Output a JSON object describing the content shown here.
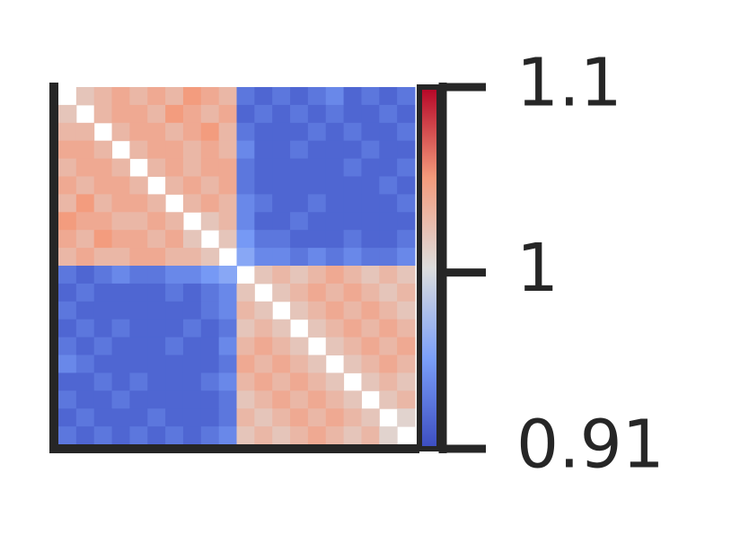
{
  "chart_data": {
    "type": "heatmap",
    "colormap": "coolwarm",
    "clim": [
      0.905,
      1.1
    ],
    "cticks": [
      {
        "value": 0.905,
        "label": "0.91"
      },
      1,
      1.1
    ],
    "matrix": [
      [
        null,
        1.02,
        1.03,
        1.04,
        1.03,
        1.04,
        1.03,
        1.05,
        1.04,
        1.03,
        0.93,
        0.92,
        0.93,
        0.92,
        0.93,
        0.94,
        0.92,
        0.93,
        0.92,
        0.93
      ],
      [
        1.02,
        null,
        1.03,
        1.04,
        1.04,
        1.03,
        1.05,
        1.04,
        1.03,
        1.04,
        0.92,
        0.93,
        0.92,
        0.93,
        0.92,
        0.93,
        0.92,
        0.92,
        0.93,
        0.92
      ],
      [
        1.03,
        1.03,
        null,
        1.03,
        1.04,
        1.04,
        1.03,
        1.04,
        1.05,
        1.03,
        0.93,
        0.92,
        0.92,
        0.92,
        0.93,
        0.92,
        0.93,
        0.92,
        0.92,
        0.93
      ],
      [
        1.04,
        1.04,
        1.03,
        null,
        1.03,
        1.04,
        1.04,
        1.03,
        1.04,
        1.03,
        0.94,
        0.92,
        0.92,
        0.93,
        0.92,
        0.92,
        0.92,
        0.93,
        0.92,
        0.92
      ],
      [
        1.03,
        1.04,
        1.04,
        1.03,
        null,
        1.03,
        1.04,
        1.03,
        1.04,
        1.04,
        0.93,
        0.92,
        0.92,
        0.92,
        0.92,
        0.92,
        0.93,
        0.92,
        0.92,
        0.93
      ],
      [
        1.04,
        1.03,
        1.04,
        1.04,
        1.03,
        null,
        1.03,
        1.04,
        1.03,
        1.04,
        0.93,
        0.92,
        0.92,
        0.92,
        0.92,
        0.92,
        0.92,
        0.92,
        0.93,
        0.92
      ],
      [
        1.03,
        1.05,
        1.03,
        1.04,
        1.04,
        1.03,
        null,
        1.03,
        1.04,
        1.03,
        0.94,
        0.93,
        0.92,
        0.92,
        0.93,
        0.92,
        0.92,
        0.92,
        0.92,
        0.93
      ],
      [
        1.05,
        1.04,
        1.04,
        1.03,
        1.03,
        1.04,
        1.03,
        null,
        1.02,
        1.03,
        0.94,
        0.92,
        0.92,
        0.93,
        0.92,
        0.92,
        0.92,
        0.92,
        0.92,
        0.92
      ],
      [
        1.04,
        1.03,
        1.05,
        1.04,
        1.04,
        1.03,
        1.04,
        1.02,
        null,
        1.02,
        0.95,
        0.93,
        0.93,
        0.92,
        0.92,
        0.92,
        0.93,
        0.92,
        0.92,
        0.93
      ],
      [
        1.03,
        1.04,
        1.03,
        1.03,
        1.04,
        1.04,
        1.03,
        1.03,
        1.02,
        null,
        0.96,
        0.94,
        0.94,
        0.93,
        0.94,
        0.93,
        0.94,
        0.93,
        0.93,
        0.94
      ],
      [
        0.93,
        0.92,
        0.93,
        0.94,
        0.93,
        0.93,
        0.94,
        0.94,
        0.95,
        0.96,
        null,
        1.02,
        1.03,
        1.02,
        1.03,
        1.04,
        1.03,
        1.02,
        1.03,
        1.02
      ],
      [
        0.92,
        0.93,
        0.92,
        0.92,
        0.92,
        0.92,
        0.93,
        0.92,
        0.93,
        0.94,
        1.02,
        null,
        1.02,
        1.03,
        1.04,
        1.03,
        1.04,
        1.03,
        1.02,
        1.03
      ],
      [
        0.93,
        0.92,
        0.92,
        0.92,
        0.92,
        0.92,
        0.92,
        0.92,
        0.93,
        0.94,
        1.03,
        1.02,
        null,
        1.02,
        1.03,
        1.04,
        1.03,
        1.04,
        1.03,
        1.02
      ],
      [
        0.92,
        0.93,
        0.92,
        0.93,
        0.92,
        0.92,
        0.92,
        0.93,
        0.92,
        0.93,
        1.02,
        1.03,
        1.02,
        null,
        1.02,
        1.03,
        1.04,
        1.03,
        1.04,
        1.03
      ],
      [
        0.93,
        0.92,
        0.93,
        0.92,
        0.92,
        0.92,
        0.93,
        0.92,
        0.92,
        0.94,
        1.03,
        1.04,
        1.03,
        1.02,
        null,
        1.02,
        1.03,
        1.04,
        1.03,
        1.04
      ],
      [
        0.94,
        0.93,
        0.92,
        0.92,
        0.92,
        0.92,
        0.92,
        0.92,
        0.92,
        0.93,
        1.04,
        1.03,
        1.04,
        1.03,
        1.02,
        null,
        1.02,
        1.03,
        1.04,
        1.03
      ],
      [
        0.92,
        0.92,
        0.93,
        0.92,
        0.93,
        0.92,
        0.92,
        0.92,
        0.93,
        0.94,
        1.03,
        1.04,
        1.03,
        1.04,
        1.03,
        1.02,
        null,
        1.02,
        1.03,
        1.02
      ],
      [
        0.93,
        0.92,
        0.92,
        0.93,
        0.92,
        0.92,
        0.92,
        0.92,
        0.92,
        0.93,
        1.02,
        1.03,
        1.04,
        1.03,
        1.04,
        1.03,
        1.02,
        null,
        1.02,
        1.03
      ],
      [
        0.92,
        0.93,
        0.92,
        0.92,
        0.92,
        0.93,
        0.92,
        0.92,
        0.92,
        0.93,
        1.03,
        1.02,
        1.03,
        1.04,
        1.03,
        1.04,
        1.03,
        1.02,
        null,
        1.01
      ],
      [
        0.93,
        0.92,
        0.93,
        0.92,
        0.93,
        0.92,
        0.93,
        0.92,
        0.93,
        0.94,
        1.02,
        1.03,
        1.02,
        1.03,
        1.04,
        1.03,
        1.02,
        1.03,
        1.01,
        null
      ]
    ]
  }
}
